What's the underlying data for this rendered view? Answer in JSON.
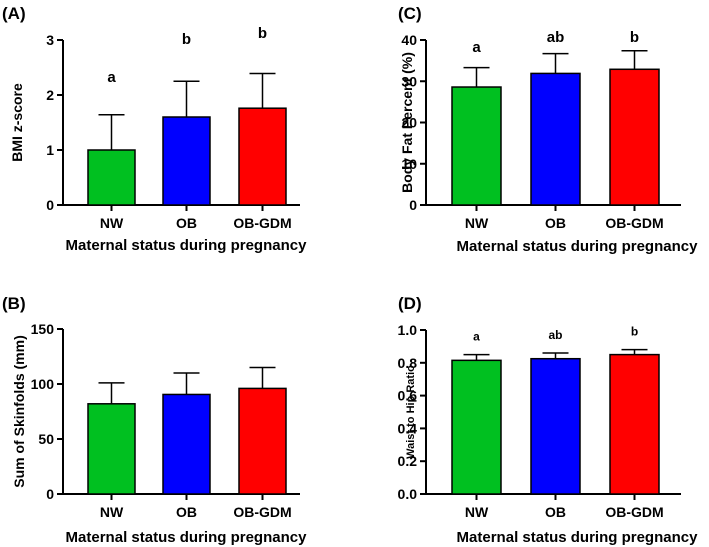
{
  "colors": {
    "NW": "#00c020",
    "OB": "#0000ff",
    "OB-GDM": "#ff0000"
  },
  "chart_data": [
    {
      "panel": "(A)",
      "type": "bar",
      "categories": [
        "NW",
        "OB",
        "OB-GDM"
      ],
      "values": [
        1.0,
        1.6,
        1.76
      ],
      "errors": [
        0.64,
        0.65,
        0.63
      ],
      "significance": [
        "a",
        "b",
        "b"
      ],
      "xlabel": "Maternal status during pregnancy",
      "ylabel": "BMI z-score",
      "ylim": [
        0,
        3
      ],
      "yticks": [
        0,
        1,
        2,
        3
      ],
      "ytick_labels": [
        "0",
        "1",
        "2",
        "3"
      ]
    },
    {
      "panel": "(C)",
      "type": "bar",
      "categories": [
        "NW",
        "OB",
        "OB-GDM"
      ],
      "values": [
        28.6,
        31.9,
        32.9
      ],
      "errors": [
        4.7,
        4.8,
        4.5
      ],
      "significance": [
        "a",
        "ab",
        "b"
      ],
      "xlabel": "Maternal status during pregnancy",
      "ylabel": "Body Fat Percent (%)",
      "ylim": [
        0,
        40
      ],
      "yticks": [
        0,
        10,
        20,
        30,
        40
      ],
      "ytick_labels": [
        "0",
        "10",
        "20",
        "30",
        "40"
      ]
    },
    {
      "panel": "(B)",
      "type": "bar",
      "categories": [
        "NW",
        "OB",
        "OB-GDM"
      ],
      "values": [
        82,
        90.5,
        96
      ],
      "errors": [
        19,
        19.5,
        19
      ],
      "significance": [
        "",
        "",
        ""
      ],
      "xlabel": "Maternal status during pregnancy",
      "ylabel": "Sum of Skinfolds (mm)",
      "ylim": [
        0,
        150
      ],
      "yticks": [
        0,
        50,
        100,
        150
      ],
      "ytick_labels": [
        "0",
        "50",
        "100",
        "150"
      ]
    },
    {
      "panel": "(D)",
      "type": "bar",
      "categories": [
        "NW",
        "OB",
        "OB-GDM"
      ],
      "values": [
        0.815,
        0.825,
        0.85
      ],
      "errors": [
        0.035,
        0.035,
        0.03
      ],
      "significance": [
        "a",
        "ab",
        "b"
      ],
      "xlabel": "Maternal status during pregnancy",
      "ylabel": "Waist to Hip Ratio",
      "ylim": [
        0,
        1.0
      ],
      "yticks": [
        0,
        0.2,
        0.4,
        0.6,
        0.8,
        1.0
      ],
      "ytick_labels": [
        "0.0",
        "0.2",
        "0.4",
        "0.6",
        "0.8",
        "1.0"
      ]
    }
  ]
}
